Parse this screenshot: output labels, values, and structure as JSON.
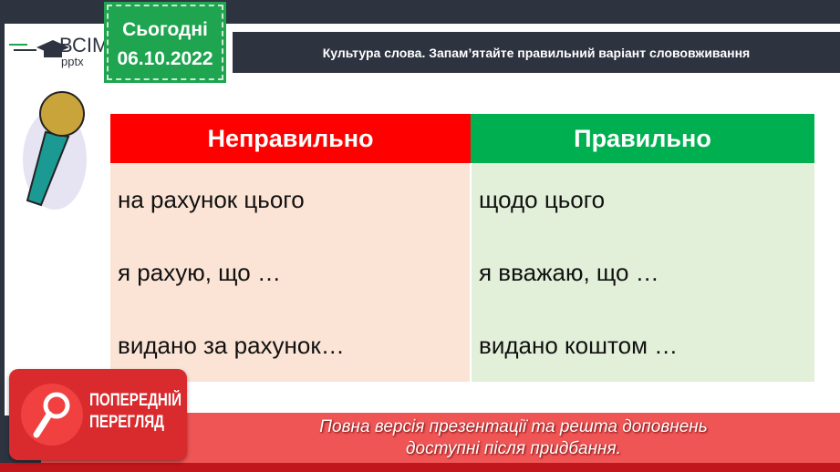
{
  "logo": {
    "name": "ВСІМ",
    "sub": "pptx"
  },
  "date_sticker": {
    "label": "Сьогодні",
    "date": "06.10.2022"
  },
  "title": "Культура слова. Запам’ятайте правильний варіант слововживання",
  "table": {
    "headers": [
      "Неправильно",
      "Правильно"
    ],
    "rows": [
      [
        "на рахунок цього",
        "щодо цього"
      ],
      [
        "я рахую, що …",
        "я вважаю, що …"
      ],
      [
        "видано за рахунок…",
        "видано коштом …"
      ]
    ]
  },
  "preview_badge": {
    "line1": "ПОПЕРЕДНІЙ",
    "line2": "ПЕРЕГЛЯД"
  },
  "notice": {
    "line1": "Повна версія презентації та решта доповнень",
    "line2": "доступні після придбання."
  },
  "colors": {
    "wrong": "#ff0000",
    "right": "#00b050",
    "sticker": "#1fa54f"
  }
}
